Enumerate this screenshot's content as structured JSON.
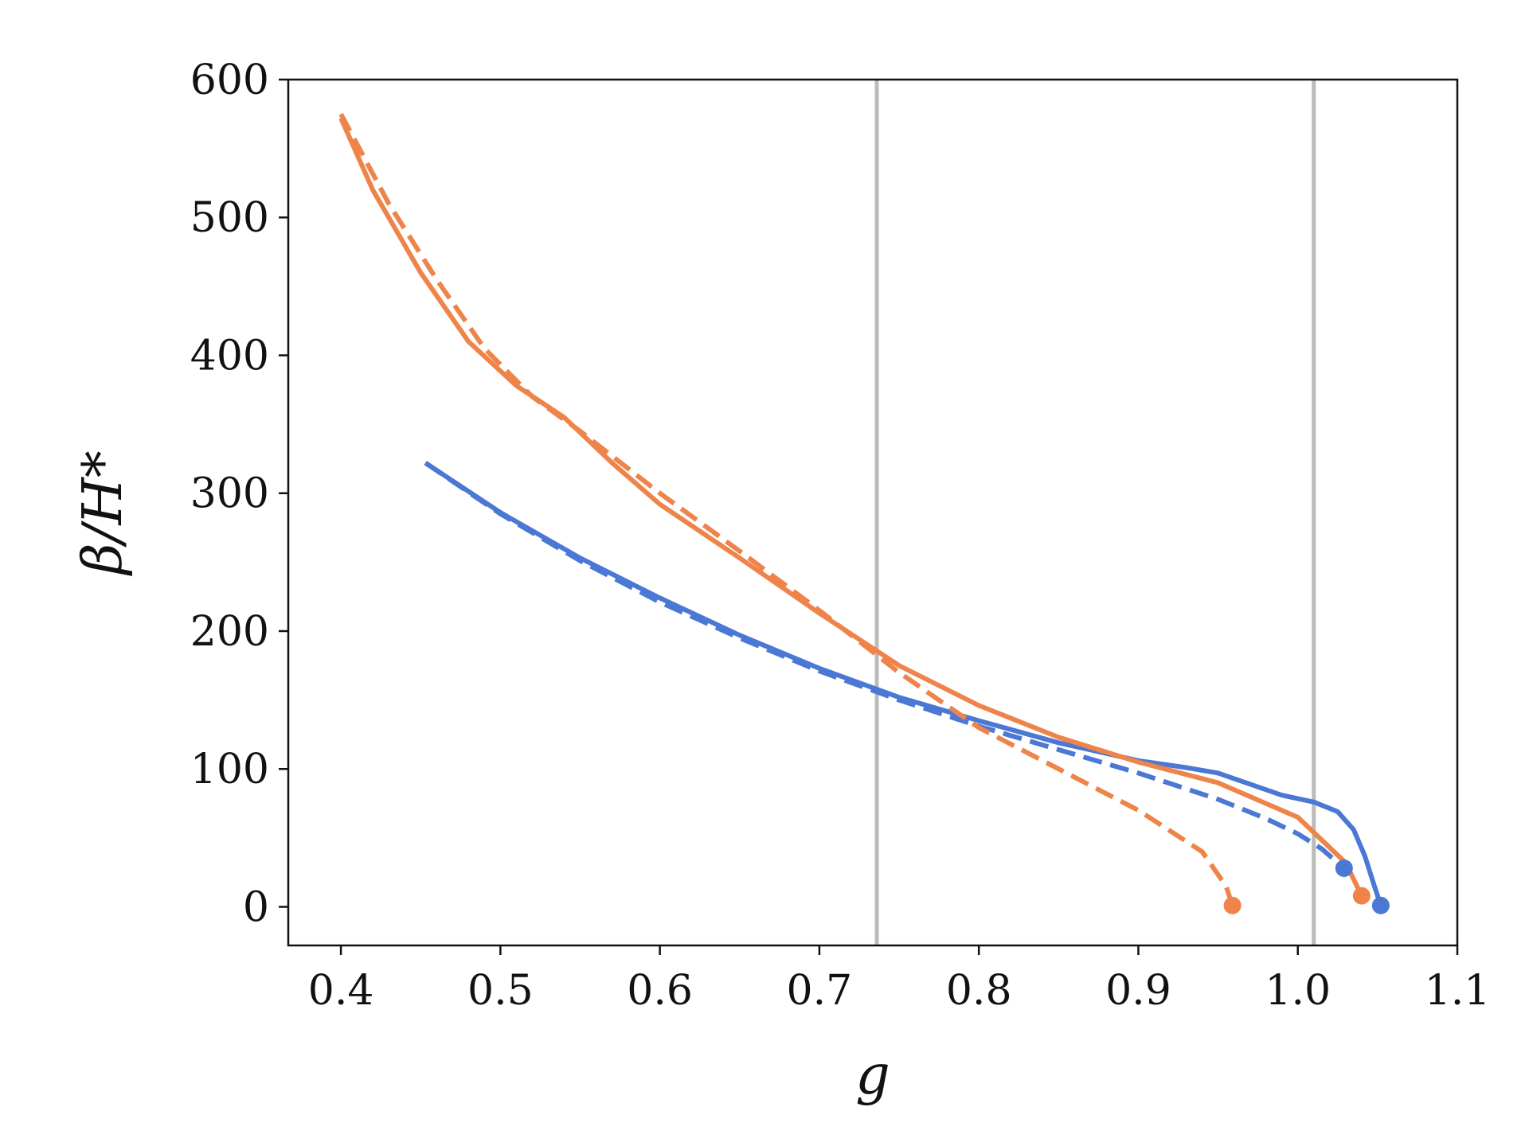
{
  "chart_data": {
    "type": "line",
    "xlabel": "g",
    "ylabel": "β/H*",
    "xlim": [
      0.367,
      1.1
    ],
    "ylim": [
      -28,
      600
    ],
    "xticks": [
      "0.4",
      "0.5",
      "0.6",
      "0.7",
      "0.8",
      "0.9",
      "1.0",
      "1.1"
    ],
    "yticks": [
      "0",
      "100",
      "200",
      "300",
      "400",
      "500",
      "600"
    ],
    "vlines": [
      0.736,
      1.01
    ],
    "grid": false,
    "colors": {
      "blue": "#4a78d4",
      "orange": "#ee8449",
      "vline": "#bbbbbb"
    },
    "series": [
      {
        "color": "blue",
        "style": "solid",
        "endpoint": [
          1.052,
          1
        ],
        "x": [
          0.453,
          0.5,
          0.55,
          0.6,
          0.65,
          0.7,
          0.75,
          0.8,
          0.85,
          0.9,
          0.93,
          0.95,
          0.97,
          0.99,
          1.01,
          1.025,
          1.035,
          1.042,
          1.048,
          1.052
        ],
        "y": [
          322,
          286,
          253,
          224,
          197,
          173,
          152,
          135,
          119,
          106,
          101,
          97,
          89,
          81,
          76,
          69,
          56,
          37,
          15,
          1
        ]
      },
      {
        "color": "blue",
        "style": "dashed",
        "endpoint": [
          1.029,
          28
        ],
        "x": [
          0.453,
          0.5,
          0.55,
          0.6,
          0.65,
          0.7,
          0.75,
          0.8,
          0.85,
          0.9,
          0.95,
          0.98,
          1.0,
          1.015,
          1.029
        ],
        "y": [
          322,
          285,
          251,
          221,
          195,
          171,
          150,
          131,
          114,
          97,
          78,
          64,
          53,
          42,
          28
        ]
      },
      {
        "color": "orange",
        "style": "solid",
        "endpoint": [
          1.04,
          8
        ],
        "x": [
          0.4,
          0.42,
          0.45,
          0.48,
          0.51,
          0.54,
          0.57,
          0.6,
          0.65,
          0.7,
          0.75,
          0.8,
          0.85,
          0.9,
          0.95,
          1.0,
          1.03,
          1.04
        ],
        "y": [
          572,
          520,
          460,
          410,
          378,
          355,
          322,
          292,
          253,
          213,
          175,
          146,
          123,
          105,
          90,
          65,
          32,
          8
        ]
      },
      {
        "color": "orange",
        "style": "dashed",
        "endpoint": [
          0.959,
          1
        ],
        "x": [
          0.4,
          0.43,
          0.46,
          0.49,
          0.52,
          0.55,
          0.6,
          0.65,
          0.7,
          0.75,
          0.8,
          0.85,
          0.9,
          0.94,
          0.955,
          0.959
        ],
        "y": [
          575,
          510,
          455,
          405,
          370,
          345,
          300,
          258,
          215,
          170,
          130,
          100,
          70,
          40,
          15,
          1
        ]
      }
    ]
  }
}
